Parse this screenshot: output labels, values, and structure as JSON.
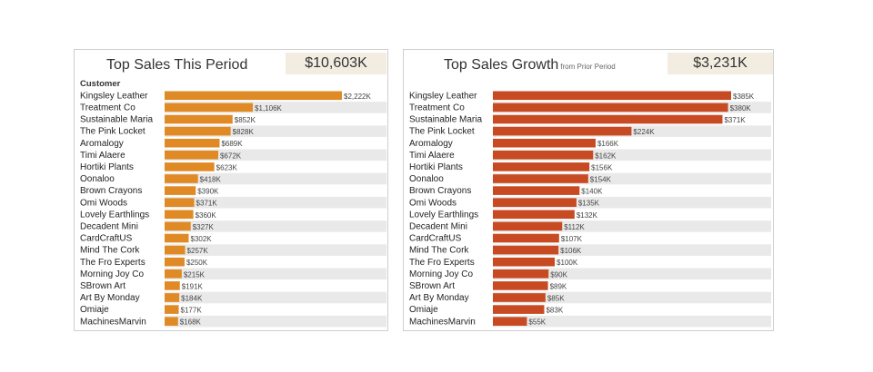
{
  "left": {
    "title": "Top Sales This Period",
    "kpi": "$10,603K",
    "column_header": "Customer"
  },
  "right": {
    "title": "Top Sales Growth",
    "subtitle": "from Prior Period",
    "kpi": "$3,231K"
  },
  "colors": {
    "orange": "#e08a26",
    "red": "#c84a22",
    "band": "#e9e9e9"
  },
  "chart_data": [
    {
      "type": "bar",
      "orientation": "horizontal",
      "title": "Top Sales This Period",
      "xlim": [
        0,
        2222
      ],
      "unit": "K",
      "categories": [
        "Kingsley Leather",
        "Treatment Co",
        "Sustainable Maria",
        "The Pink Locket",
        "Aromalogy",
        "Timi Alaere",
        "Hortiki Plants",
        "Oonaloo",
        "Brown Crayons",
        "Omi Woods",
        "Lovely Earthlings",
        "Decadent Mini",
        "CardCraftUS",
        "Mind The Cork",
        "The Fro Experts",
        "Morning Joy Co",
        "SBrown Art",
        "Art By Monday",
        "Omiaje",
        "MachinesMarvin"
      ],
      "values": [
        2222,
        1106,
        852,
        828,
        689,
        672,
        623,
        418,
        390,
        371,
        360,
        327,
        302,
        257,
        250,
        215,
        191,
        184,
        177,
        168
      ],
      "labels": [
        "$2,222K",
        "$1,106K",
        "$852K",
        "$828K",
        "$689K",
        "$672K",
        "$623K",
        "$418K",
        "$390K",
        "$371K",
        "$360K",
        "$327K",
        "$302K",
        "$257K",
        "$250K",
        "$215K",
        "$191K",
        "$184K",
        "$177K",
        "$168K"
      ]
    },
    {
      "type": "bar",
      "orientation": "horizontal",
      "title": "Top Sales Growth",
      "xlim": [
        0,
        385
      ],
      "unit": "K",
      "categories": [
        "Kingsley Leather",
        "Treatment Co",
        "Sustainable Maria",
        "The Pink Locket",
        "Aromalogy",
        "Timi Alaere",
        "Hortiki Plants",
        "Oonaloo",
        "Brown Crayons",
        "Omi Woods",
        "Lovely Earthlings",
        "Decadent Mini",
        "CardCraftUS",
        "Mind The Cork",
        "The Fro Experts",
        "Morning Joy Co",
        "SBrown Art",
        "Art By Monday",
        "Omiaje",
        "MachinesMarvin"
      ],
      "values": [
        385,
        380,
        371,
        224,
        166,
        162,
        156,
        154,
        140,
        135,
        132,
        112,
        107,
        106,
        100,
        90,
        89,
        85,
        83,
        55
      ],
      "labels": [
        "$385K",
        "$380K",
        "$371K",
        "$224K",
        "$166K",
        "$162K",
        "$156K",
        "$154K",
        "$140K",
        "$135K",
        "$132K",
        "$112K",
        "$107K",
        "$106K",
        "$100K",
        "$90K",
        "$89K",
        "$85K",
        "$83K",
        "$55K"
      ]
    }
  ]
}
